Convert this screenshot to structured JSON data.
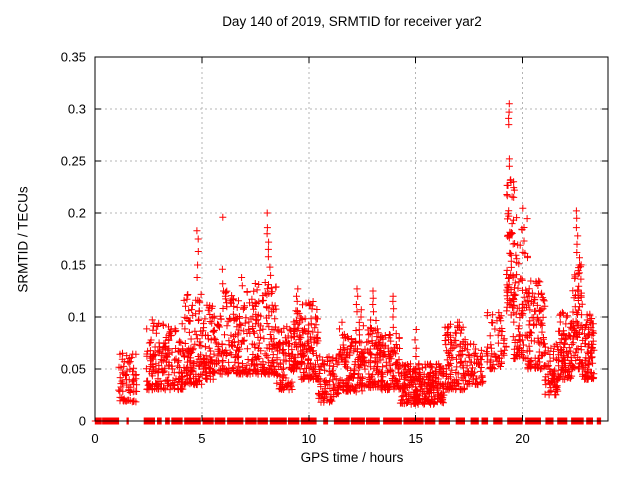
{
  "chart_data": {
    "type": "scatter",
    "title": "Day 140 of 2019, SRMTID for receiver yar2",
    "xlabel": "GPS time / hours",
    "ylabel": "SRMTID / TECUs",
    "xlim": [
      0,
      24
    ],
    "ylim": [
      0,
      0.35
    ],
    "xticks": [
      0,
      5,
      10,
      15,
      20
    ],
    "xtick_labels": [
      "0",
      "5",
      "10",
      "15",
      "20"
    ],
    "yticks": [
      0,
      0.05,
      0.1,
      0.15,
      0.2,
      0.25,
      0.3,
      0.35
    ],
    "ytick_labels": [
      "0",
      "0.05",
      "0.1",
      "0.15",
      "0.2",
      "0.25",
      "0.3",
      "0.35"
    ],
    "grid": true,
    "grid_color": "#b4b4b4",
    "border_color": "#000000",
    "legend": "none",
    "marker": {
      "shape": "plus",
      "color": "#ff0000",
      "size": 7
    },
    "clusters": [
      {
        "x0": 1.05,
        "x1": 1.95,
        "ymin": 0.018,
        "ymax": 0.068,
        "n": 70,
        "bias": 1.4
      },
      {
        "x0": 2.4,
        "x1": 4.15,
        "ymin": 0.03,
        "ymax": 0.098,
        "n": 180,
        "bias": 1.6
      },
      {
        "x0": 4.15,
        "x1": 5.05,
        "ymin": 0.035,
        "ymax": 0.125,
        "n": 110,
        "bias": 1.7
      },
      {
        "x0": 5.05,
        "x1": 5.6,
        "ymin": 0.04,
        "ymax": 0.115,
        "n": 70,
        "bias": 1.5
      },
      {
        "x0": 5.6,
        "x1": 7.2,
        "ymin": 0.045,
        "ymax": 0.125,
        "n": 160,
        "bias": 1.6
      },
      {
        "x0": 7.2,
        "x1": 8.5,
        "ymin": 0.045,
        "ymax": 0.135,
        "n": 150,
        "bias": 1.6
      },
      {
        "x0": 8.5,
        "x1": 9.3,
        "ymin": 0.03,
        "ymax": 0.092,
        "n": 90,
        "bias": 1.5
      },
      {
        "x0": 9.3,
        "x1": 9.6,
        "ymin": 0.05,
        "ymax": 0.11,
        "n": 40,
        "bias": 1.4
      },
      {
        "x0": 9.6,
        "x1": 10.45,
        "ymin": 0.04,
        "ymax": 0.115,
        "n": 110,
        "bias": 1.6
      },
      {
        "x0": 10.45,
        "x1": 11.4,
        "ymin": 0.018,
        "ymax": 0.062,
        "n": 80,
        "bias": 1.4
      },
      {
        "x0": 11.4,
        "x1": 12.65,
        "ymin": 0.028,
        "ymax": 0.095,
        "n": 150,
        "bias": 1.6
      },
      {
        "x0": 12.65,
        "x1": 13.25,
        "ymin": 0.032,
        "ymax": 0.1,
        "n": 70,
        "bias": 1.5
      },
      {
        "x0": 13.25,
        "x1": 14.25,
        "ymin": 0.03,
        "ymax": 0.085,
        "n": 120,
        "bias": 1.5
      },
      {
        "x0": 14.25,
        "x1": 16.35,
        "ymin": 0.016,
        "ymax": 0.055,
        "n": 260,
        "bias": 1.3
      },
      {
        "x0": 16.35,
        "x1": 17.35,
        "ymin": 0.03,
        "ymax": 0.095,
        "n": 110,
        "bias": 1.5
      },
      {
        "x0": 17.4,
        "x1": 18.15,
        "ymin": 0.035,
        "ymax": 0.075,
        "n": 60,
        "bias": 1.4
      },
      {
        "x0": 18.3,
        "x1": 19.25,
        "ymin": 0.05,
        "ymax": 0.105,
        "n": 60,
        "bias": 1.4
      },
      {
        "x0": 19.25,
        "x1": 19.6,
        "ymin": 0.1,
        "ymax": 0.235,
        "n": 60,
        "bias": 1.2
      },
      {
        "x0": 19.55,
        "x1": 20.25,
        "ymin": 0.06,
        "ymax": 0.21,
        "n": 90,
        "bias": 1.7
      },
      {
        "x0": 20.25,
        "x1": 21.05,
        "ymin": 0.05,
        "ymax": 0.135,
        "n": 100,
        "bias": 1.6
      },
      {
        "x0": 21.05,
        "x1": 21.65,
        "ymin": 0.025,
        "ymax": 0.075,
        "n": 60,
        "bias": 1.4
      },
      {
        "x0": 21.65,
        "x1": 22.35,
        "ymin": 0.04,
        "ymax": 0.105,
        "n": 90,
        "bias": 1.5
      },
      {
        "x0": 22.35,
        "x1": 22.8,
        "ymin": 0.05,
        "ymax": 0.155,
        "n": 70,
        "bias": 1.5
      },
      {
        "x0": 22.8,
        "x1": 23.35,
        "ymin": 0.04,
        "ymax": 0.105,
        "n": 80,
        "bias": 1.5
      }
    ],
    "outlier_columns": [
      {
        "x": 4.8,
        "ys": [
          0.138,
          0.15,
          0.163,
          0.175,
          0.183
        ]
      },
      {
        "x": 5.97,
        "ys": [
          0.125,
          0.132,
          0.146,
          0.196
        ]
      },
      {
        "x": 6.9,
        "ys": [
          0.13,
          0.138
        ]
      },
      {
        "x": 8.08,
        "ys": [
          0.158,
          0.165,
          0.172,
          0.18,
          0.186,
          0.2
        ]
      },
      {
        "x": 8.22,
        "ys": [
          0.128,
          0.14,
          0.148
        ]
      },
      {
        "x": 9.45,
        "ys": [
          0.115,
          0.12,
          0.127
        ]
      },
      {
        "x": 12.25,
        "ys": [
          0.105,
          0.112,
          0.12,
          0.127
        ]
      },
      {
        "x": 12.45,
        "ys": [
          0.1,
          0.107
        ]
      },
      {
        "x": 13.0,
        "ys": [
          0.105,
          0.112,
          0.118,
          0.125
        ]
      },
      {
        "x": 13.95,
        "ys": [
          0.09,
          0.1,
          0.108,
          0.115,
          0.12
        ]
      },
      {
        "x": 15.0,
        "ys": [
          0.062,
          0.07,
          0.078,
          0.088
        ]
      },
      {
        "x": 19.38,
        "ys": [
          0.285,
          0.291,
          0.297,
          0.305
        ]
      },
      {
        "x": 19.42,
        "ys": [
          0.245,
          0.252
        ]
      },
      {
        "x": 19.62,
        "ys": [
          0.215,
          0.222,
          0.23
        ]
      },
      {
        "x": 22.55,
        "ys": [
          0.162,
          0.17,
          0.178,
          0.186,
          0.195,
          0.202
        ]
      },
      {
        "x": 22.68,
        "ys": [
          0.15,
          0.157
        ]
      }
    ],
    "zero_runs": [
      [
        0.02,
        0.3
      ],
      [
        0.36,
        1.12
      ],
      [
        1.5,
        1.56
      ],
      [
        2.3,
        2.78
      ],
      [
        2.92,
        3.12
      ],
      [
        3.3,
        3.5
      ],
      [
        3.6,
        4.1
      ],
      [
        4.2,
        4.95
      ],
      [
        5.05,
        5.55
      ],
      [
        5.62,
        6.1
      ],
      [
        6.2,
        6.95
      ],
      [
        7.05,
        7.55
      ],
      [
        7.62,
        8.1
      ],
      [
        8.2,
        8.95
      ],
      [
        9.05,
        9.55
      ],
      [
        9.65,
        10.35
      ],
      [
        10.7,
        10.9
      ],
      [
        11.2,
        11.9
      ],
      [
        12.0,
        12.6
      ],
      [
        12.7,
        13.3
      ],
      [
        13.5,
        14.35
      ],
      [
        14.45,
        15.35
      ],
      [
        15.45,
        15.9
      ],
      [
        16.1,
        16.6
      ],
      [
        16.9,
        17.3
      ],
      [
        17.6,
        17.95
      ],
      [
        18.1,
        18.4
      ],
      [
        18.65,
        19.05
      ],
      [
        19.3,
        20.0
      ],
      [
        20.15,
        20.85
      ],
      [
        21.1,
        21.45
      ],
      [
        21.65,
        22.1
      ],
      [
        22.3,
        22.85
      ],
      [
        23.0,
        23.3
      ],
      [
        23.5,
        23.68
      ]
    ]
  }
}
